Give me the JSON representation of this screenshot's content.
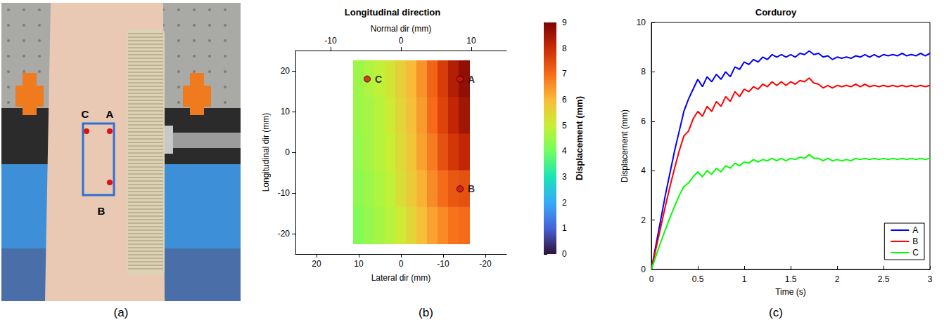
{
  "captions": [
    "(a)",
    "(b)",
    "(c)"
  ],
  "photo": {
    "labels": [
      "C",
      "A",
      "B"
    ]
  },
  "chart_data": [
    {
      "type": "surface",
      "title": "Longitudinal direction",
      "x_label": "Lateral dir (mm)",
      "y_label": "Longitudinal dir (mm)",
      "z_label": "Normal dir (mm)",
      "xlim": [
        -25,
        25
      ],
      "xticks": [
        20,
        10,
        0,
        -10,
        -20
      ],
      "ylim": [
        -25,
        25
      ],
      "yticks": [
        -20,
        -10,
        0,
        10,
        20
      ],
      "zlim": [
        -15,
        15
      ],
      "zticks": [
        -10,
        0,
        10
      ],
      "lateral": [
        10,
        7.5,
        5,
        2.5,
        0,
        -2.5,
        -5,
        -7.5,
        -10,
        -12.5,
        -15
      ],
      "longitudinal": [
        18,
        9,
        0,
        -9,
        -18
      ],
      "displacement": [
        [
          4.5,
          4.7,
          4.9,
          5.2,
          5.6,
          6.0,
          6.5,
          7.1,
          7.7,
          8.3,
          8.7
        ],
        [
          4.5,
          4.6,
          4.8,
          5.1,
          5.5,
          5.9,
          6.4,
          7.0,
          7.6,
          8.1,
          8.5
        ],
        [
          4.4,
          4.6,
          4.8,
          5.0,
          5.4,
          5.8,
          6.3,
          6.8,
          7.4,
          7.8,
          8.1
        ],
        [
          4.3,
          4.5,
          4.7,
          4.9,
          5.3,
          5.7,
          6.1,
          6.6,
          7.0,
          7.3,
          7.4
        ],
        [
          4.2,
          4.4,
          4.6,
          4.8,
          5.1,
          5.5,
          5.9,
          6.3,
          6.6,
          6.9,
          7.0
        ]
      ],
      "points": [
        {
          "name": "C",
          "x": 8,
          "y": 18
        },
        {
          "name": "A",
          "x": -14,
          "y": 18
        },
        {
          "name": "B",
          "x": -14,
          "y": -9
        }
      ],
      "colorbar": {
        "label": "Displacement (mm)",
        "range": [
          0,
          9
        ],
        "ticks": [
          0,
          1,
          2,
          3,
          4,
          5,
          6,
          7,
          8,
          9
        ]
      },
      "tick_labels": true
    },
    {
      "type": "line",
      "title": "Corduroy",
      "x_label": "Time (s)",
      "y_label": "Displacement (mm)",
      "xlim": [
        0,
        3
      ],
      "xticks": [
        0,
        0.5,
        1,
        1.5,
        2,
        2.5,
        3
      ],
      "ylim": [
        0,
        10
      ],
      "yticks": [
        0,
        2,
        4,
        6,
        8,
        10
      ],
      "grid": false,
      "legend": "lower right",
      "x": [
        0,
        0.05,
        0.1,
        0.15,
        0.2,
        0.25,
        0.3,
        0.35,
        0.4,
        0.45,
        0.5,
        0.55,
        0.6,
        0.65,
        0.7,
        0.75,
        0.8,
        0.85,
        0.9,
        0.95,
        1,
        1.05,
        1.1,
        1.15,
        1.2,
        1.25,
        1.3,
        1.35,
        1.4,
        1.45,
        1.5,
        1.55,
        1.6,
        1.65,
        1.7,
        1.75,
        1.8,
        1.85,
        1.9,
        1.95,
        2,
        2.05,
        2.1,
        2.15,
        2.2,
        2.25,
        2.3,
        2.35,
        2.4,
        2.45,
        2.5,
        2.55,
        2.6,
        2.65,
        2.7,
        2.75,
        2.8,
        2.85,
        2.9,
        2.95,
        3
      ],
      "series": [
        {
          "name": "A",
          "color": "#0000ff",
          "line_style": "solid",
          "values": [
            0,
            1.0,
            2.0,
            3.0,
            3.9,
            4.8,
            5.6,
            6.4,
            6.9,
            7.3,
            7.7,
            7.4,
            7.8,
            7.6,
            7.9,
            7.7,
            8.0,
            7.8,
            8.2,
            8.1,
            8.4,
            8.3,
            8.5,
            8.4,
            8.6,
            8.5,
            8.7,
            8.6,
            8.7,
            8.6,
            8.7,
            8.6,
            8.75,
            8.7,
            8.85,
            8.7,
            8.75,
            8.6,
            8.65,
            8.5,
            8.6,
            8.55,
            8.6,
            8.55,
            8.65,
            8.6,
            8.7,
            8.6,
            8.7,
            8.6,
            8.7,
            8.65,
            8.7,
            8.65,
            8.75,
            8.65,
            8.7,
            8.65,
            8.75,
            8.65,
            8.75
          ]
        },
        {
          "name": "B",
          "color": "#ff0000",
          "line_style": "solid",
          "values": [
            0,
            0.85,
            1.7,
            2.55,
            3.35,
            4.1,
            4.8,
            5.4,
            5.6,
            6.1,
            6.4,
            6.2,
            6.6,
            6.4,
            6.8,
            6.6,
            7.0,
            6.8,
            7.2,
            7.0,
            7.3,
            7.2,
            7.4,
            7.3,
            7.5,
            7.4,
            7.6,
            7.45,
            7.6,
            7.45,
            7.6,
            7.5,
            7.65,
            7.6,
            7.75,
            7.55,
            7.5,
            7.35,
            7.45,
            7.35,
            7.45,
            7.4,
            7.45,
            7.4,
            7.5,
            7.4,
            7.5,
            7.4,
            7.45,
            7.4,
            7.45,
            7.4,
            7.45,
            7.4,
            7.45,
            7.4,
            7.45,
            7.4,
            7.45,
            7.4,
            7.45
          ]
        },
        {
          "name": "C",
          "color": "#00ff00",
          "line_style": "solid",
          "values": [
            0,
            0.55,
            1.1,
            1.6,
            2.1,
            2.55,
            3.0,
            3.35,
            3.5,
            3.75,
            3.95,
            3.75,
            4.0,
            3.85,
            4.1,
            3.95,
            4.2,
            4.1,
            4.3,
            4.2,
            4.35,
            4.3,
            4.45,
            4.35,
            4.45,
            4.4,
            4.5,
            4.4,
            4.5,
            4.4,
            4.5,
            4.45,
            4.55,
            4.5,
            4.65,
            4.5,
            4.5,
            4.4,
            4.5,
            4.4,
            4.45,
            4.4,
            4.45,
            4.4,
            4.5,
            4.45,
            4.5,
            4.45,
            4.5,
            4.45,
            4.5,
            4.45,
            4.5,
            4.45,
            4.5,
            4.45,
            4.5,
            4.45,
            4.5,
            4.45,
            4.5
          ]
        }
      ]
    }
  ]
}
